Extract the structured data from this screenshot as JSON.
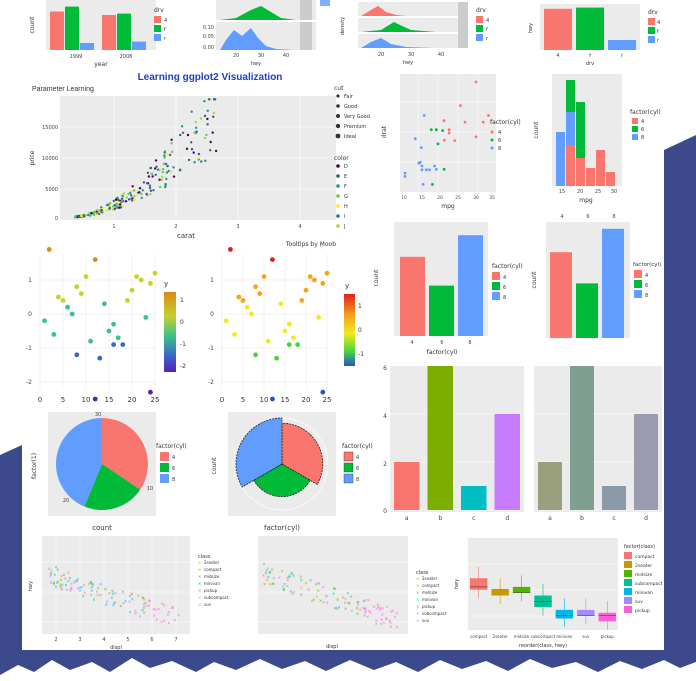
{
  "colors": {
    "bg_blue": "#3c4a8c",
    "mountain": "#ffffff",
    "panel_grey": "#ebebeb",
    "red": "#f8766d",
    "green": "#00ba38",
    "blue": "#619cff",
    "title": "#1f3fbf"
  },
  "main": {
    "title": "Learning ggplot2 Visualization",
    "subtitle": "Parameter Learning"
  },
  "chart_data": [
    {
      "id": "bar-dodge-top",
      "type": "bar",
      "categories": [
        "1999",
        "2008"
      ],
      "series": [
        {
          "name": "4",
          "values": [
            5.5,
            5.0
          ]
        },
        {
          "name": "f",
          "values": [
            6.2,
            5.2
          ]
        },
        {
          "name": "r",
          "values": [
            1.0,
            1.2
          ]
        }
      ],
      "xlabel": "year",
      "ylabel": "count",
      "legend_title": "drv",
      "x_ticks": [
        "1999",
        "2008"
      ]
    },
    {
      "id": "density-top-mid",
      "type": "area",
      "xlabel": "hwy",
      "y_ticks": [
        "0.10",
        "0.05",
        "0.00"
      ],
      "x_ticks": [
        "20",
        "30",
        "40"
      ]
    },
    {
      "id": "density-facet-top",
      "type": "area",
      "xlabel": "hwy",
      "ylabel": "density",
      "legend_title": "drv",
      "legend": [
        "4",
        "f",
        "r"
      ],
      "x_ticks": [
        "20",
        "30",
        "40"
      ]
    },
    {
      "id": "bar-drv-top-right",
      "type": "bar",
      "categories": [
        "4",
        "f",
        "r"
      ],
      "values": [
        103,
        106,
        25
      ],
      "xlabel": "drv",
      "ylabel": "hwy",
      "legend_title": "drv",
      "legend": [
        "4",
        "f",
        "r"
      ]
    },
    {
      "id": "diamonds-scatter",
      "type": "scatter",
      "xlabel": "carat",
      "ylabel": "price",
      "x_ticks": [
        "1",
        "2",
        "3",
        "4"
      ],
      "y_ticks": [
        "15000",
        "10000",
        "5000",
        "0"
      ],
      "legend_cut_title": "cut",
      "legend_cut": [
        "Fair",
        "Good",
        "Very Good",
        "Premium",
        "Ideal"
      ],
      "legend_color_title": "color",
      "legend_color": [
        "D",
        "E",
        "F",
        "G",
        "H",
        "I",
        "J"
      ],
      "caption": "Tooltips by Moob"
    },
    {
      "id": "mtcars-scatter",
      "type": "scatter",
      "xlabel": "mpg",
      "ylabel": "drat",
      "legend_title": "factor(cyl)",
      "legend": [
        "4",
        "6",
        "8"
      ],
      "x_ticks": [
        "10",
        "15",
        "20",
        "25",
        "30",
        "35"
      ],
      "y_ticks": [
        "5.0",
        "4.5",
        "4.0",
        "3.5",
        "3.0"
      ]
    },
    {
      "id": "stacked-bar",
      "type": "bar",
      "xlabel": "mpg",
      "ylabel": "count",
      "legend_title": "factor(cyl)",
      "legend": [
        "4",
        "6",
        "8"
      ],
      "x_ticks": [
        "15",
        "20",
        "25",
        "30"
      ],
      "y_ticks": [
        "6",
        "4",
        "2",
        "0"
      ]
    },
    {
      "id": "cyl-bar-left",
      "type": "bar",
      "categories": [
        "4",
        "6",
        "8"
      ],
      "values": [
        11,
        7,
        14
      ],
      "xlabel": "factor(cyl)",
      "ylabel": "count",
      "legend_title": "factor(cyl)",
      "legend": [
        "4",
        "6",
        "8"
      ],
      "y_ticks": [
        "15",
        "10",
        "5",
        "0"
      ]
    },
    {
      "id": "cyl-bar-right",
      "type": "bar",
      "categories": [
        "4",
        "6",
        "8"
      ],
      "values": [
        11,
        7,
        14
      ],
      "ylabel": "count",
      "legend_title": "factor(cyl)",
      "legend": [
        "4",
        "6",
        "8"
      ],
      "top_ticks": [
        "4",
        "6",
        "8"
      ],
      "y_ticks": [
        "10",
        "5",
        "0"
      ]
    },
    {
      "id": "gradient-scatter-1",
      "type": "scatter",
      "legend_title": "y",
      "legend_ticks": [
        "1",
        "0",
        "-1",
        "-2"
      ],
      "x_ticks": [
        "0",
        "5",
        "10",
        "15",
        "20",
        "25"
      ],
      "y_ticks": [
        "1",
        "0",
        "-1",
        "-2"
      ],
      "x": [
        2,
        4,
        6,
        8,
        10,
        12,
        14,
        16,
        18,
        20,
        22,
        24,
        3,
        7,
        11,
        15,
        19,
        23,
        5,
        9,
        13,
        17,
        21,
        25,
        1,
        12,
        24,
        8,
        16
      ],
      "y": [
        1.9,
        0.5,
        0.2,
        0.8,
        1.1,
        1.6,
        0.3,
        -0.3,
        -0.9,
        0.7,
        1.0,
        0.9,
        -0.6,
        0.0,
        -0.8,
        -0.5,
        0.4,
        -0.1,
        0.4,
        0.6,
        -1.3,
        -0.7,
        1.1,
        1.2,
        -0.2,
        -2.5,
        -2.3,
        -1.2,
        -0.9
      ]
    },
    {
      "id": "gradient-scatter-2",
      "type": "scatter",
      "legend_title": "y",
      "legend_ticks": [
        "1",
        "0",
        "-1"
      ],
      "x_ticks": [
        "0",
        "5",
        "10",
        "15",
        "20",
        "25"
      ],
      "y_ticks": [
        "1",
        "0",
        "-1",
        "-2"
      ],
      "x": [
        2,
        4,
        6,
        8,
        10,
        12,
        14,
        16,
        18,
        20,
        22,
        24,
        3,
        7,
        11,
        15,
        19,
        23,
        5,
        9,
        13,
        17,
        21,
        25,
        1,
        12,
        24,
        8,
        16
      ],
      "y": [
        1.9,
        0.5,
        0.2,
        0.8,
        1.1,
        1.6,
        0.3,
        -0.3,
        -0.9,
        0.7,
        1.0,
        0.9,
        -0.6,
        0.0,
        -0.8,
        -0.5,
        0.4,
        -0.1,
        0.4,
        0.6,
        -1.3,
        -0.7,
        1.1,
        1.2,
        -0.2,
        -2.5,
        -2.3,
        -1.2,
        -0.9
      ]
    },
    {
      "id": "pie-cyl",
      "type": "pie",
      "categories": [
        "4",
        "6",
        "8"
      ],
      "values": [
        11,
        7,
        14
      ],
      "ylabel": "factor(1)",
      "xlabel": "count",
      "legend_title": "factor(cyl)",
      "legend": [
        "4",
        "6",
        "8"
      ],
      "labels": [
        "30",
        "10",
        "20"
      ]
    },
    {
      "id": "coxcomb-cyl",
      "type": "pie",
      "categories": [
        "4",
        "6",
        "8"
      ],
      "values": [
        11,
        7,
        14
      ],
      "ylabel": "count",
      "xlabel": "factor(cyl)",
      "legend_title": "factor(cyl)",
      "legend": [
        "4",
        "6",
        "8"
      ]
    },
    {
      "id": "big-bar-colored",
      "type": "bar",
      "categories": [
        "a",
        "b",
        "c",
        "d"
      ],
      "values": [
        2,
        6,
        1,
        4
      ],
      "colors": [
        "#f8766d",
        "#7cae00",
        "#00bfc4",
        "#c77cff"
      ],
      "y_ticks": [
        "6",
        "4",
        "2",
        "0"
      ]
    },
    {
      "id": "big-bar-muted",
      "type": "bar",
      "categories": [
        "a",
        "b",
        "c",
        "d"
      ],
      "values": [
        2,
        6,
        1,
        4
      ],
      "colors": [
        "#9aa07e",
        "#7fa090",
        "#8a9aa8",
        "#9a9ab0"
      ],
      "y_ticks": [
        "6",
        "4",
        "2",
        "0"
      ]
    },
    {
      "id": "mpg-scatter-class",
      "type": "scatter",
      "xlabel": "displ",
      "ylabel": "hwy",
      "legend_title": "class",
      "legend": [
        "2seater",
        "compact",
        "midsize",
        "minivan",
        "pickup",
        "subcompact",
        "suv"
      ],
      "x_ticks": [
        "2",
        "3",
        "4",
        "5",
        "6",
        "7"
      ],
      "y_ticks": [
        "40",
        "30",
        "20"
      ]
    },
    {
      "id": "mpg-scatter-2",
      "type": "scatter",
      "xlabel": "displ",
      "ylabel": "hwy",
      "legend_title": "class",
      "legend": [
        "2seater",
        "compact",
        "midsize",
        "minivan",
        "pickup",
        "subcompact",
        "suv"
      ]
    },
    {
      "id": "boxplot-class",
      "type": "bar",
      "xlabel": "reorder(class, hwy)",
      "ylabel": "hwy",
      "legend_title": "factor(class)",
      "categories": [
        "2seater",
        "compact",
        "midsize",
        "minivan",
        "pickup",
        "subcompact",
        "suv"
      ],
      "x_ticks": [
        "compact",
        "2seater",
        "midsize",
        "subcompact",
        "minivan",
        "suv",
        "pickup"
      ],
      "legend": [
        "compact",
        "2seater",
        "midsize",
        "subcompact",
        "minivan",
        "suv",
        "pickup"
      ],
      "q1": [
        26,
        24,
        25,
        20,
        16,
        17,
        15
      ],
      "median": [
        27,
        26,
        25,
        22,
        17,
        17,
        17
      ],
      "q3": [
        30,
        26,
        27,
        24,
        19,
        19,
        18
      ],
      "ylim": [
        12,
        44
      ]
    }
  ]
}
